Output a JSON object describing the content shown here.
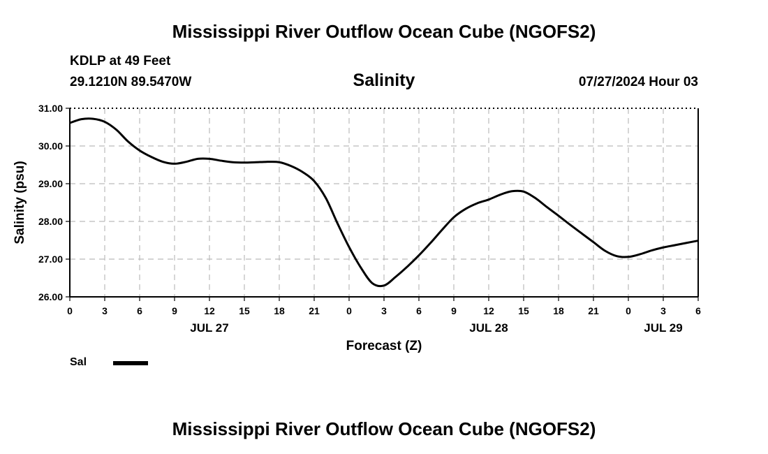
{
  "header": {
    "title": "Mississippi River Outflow Ocean Cube (NGOFS2)",
    "station": "KDLP at 49 Feet",
    "coords": "29.1210N  89.5470W",
    "subtitle": "Salinity",
    "datetime": "07/27/2024 Hour 03"
  },
  "footer": {
    "title": "Mississippi River Outflow Ocean Cube (NGOFS2)"
  },
  "legend": {
    "label": "Sal",
    "color": "#000000"
  },
  "chart_data": {
    "type": "line",
    "title": "Salinity",
    "xlabel": "Forecast (Z)",
    "ylabel": "Salinity (psu)",
    "xlim": [
      0,
      54
    ],
    "ylim": [
      26.0,
      31.0
    ],
    "grid": true,
    "y_ticks": [
      "26.00",
      "27.00",
      "28.00",
      "29.00",
      "30.00",
      "31.00"
    ],
    "y_tick_values": [
      26,
      27,
      28,
      29,
      30,
      31
    ],
    "x_ticks": [
      {
        "h": 0,
        "label": "0"
      },
      {
        "h": 3,
        "label": "3"
      },
      {
        "h": 6,
        "label": "6"
      },
      {
        "h": 9,
        "label": "9"
      },
      {
        "h": 12,
        "label": "12"
      },
      {
        "h": 15,
        "label": "15"
      },
      {
        "h": 18,
        "label": "18"
      },
      {
        "h": 21,
        "label": "21"
      },
      {
        "h": 24,
        "label": "0"
      },
      {
        "h": 27,
        "label": "3"
      },
      {
        "h": 30,
        "label": "6"
      },
      {
        "h": 33,
        "label": "9"
      },
      {
        "h": 36,
        "label": "12"
      },
      {
        "h": 39,
        "label": "15"
      },
      {
        "h": 42,
        "label": "18"
      },
      {
        "h": 45,
        "label": "21"
      },
      {
        "h": 48,
        "label": "0"
      },
      {
        "h": 51,
        "label": "3"
      },
      {
        "h": 54,
        "label": "6"
      }
    ],
    "day_labels": [
      {
        "h": 12,
        "label": "JUL 27"
      },
      {
        "h": 36,
        "label": "JUL 28"
      },
      {
        "h": 51,
        "label": "JUL 29"
      }
    ],
    "series": [
      {
        "name": "Sal",
        "color": "#000000",
        "x": [
          0,
          1,
          2,
          3,
          4,
          5,
          6,
          7,
          8,
          9,
          10,
          11,
          12,
          13,
          14,
          15,
          16,
          17,
          18,
          19,
          20,
          21,
          22,
          23,
          24,
          25,
          26,
          27,
          28,
          29,
          30,
          31,
          32,
          33,
          34,
          35,
          36,
          37,
          38,
          39,
          40,
          41,
          42,
          43,
          44,
          45,
          46,
          47,
          48,
          49,
          50,
          51,
          52,
          53,
          54
        ],
        "values": [
          30.61,
          30.71,
          30.72,
          30.64,
          30.43,
          30.12,
          29.88,
          29.71,
          29.58,
          29.53,
          29.58,
          29.66,
          29.66,
          29.61,
          29.57,
          29.56,
          29.57,
          29.58,
          29.57,
          29.47,
          29.31,
          29.07,
          28.62,
          27.95,
          27.32,
          26.78,
          26.36,
          26.3,
          26.53,
          26.8,
          27.1,
          27.43,
          27.78,
          28.11,
          28.33,
          28.48,
          28.58,
          28.71,
          28.8,
          28.79,
          28.62,
          28.38,
          28.15,
          27.91,
          27.68,
          27.45,
          27.22,
          27.08,
          27.06,
          27.13,
          27.23,
          27.31,
          27.37,
          27.43,
          27.49
        ]
      }
    ]
  }
}
